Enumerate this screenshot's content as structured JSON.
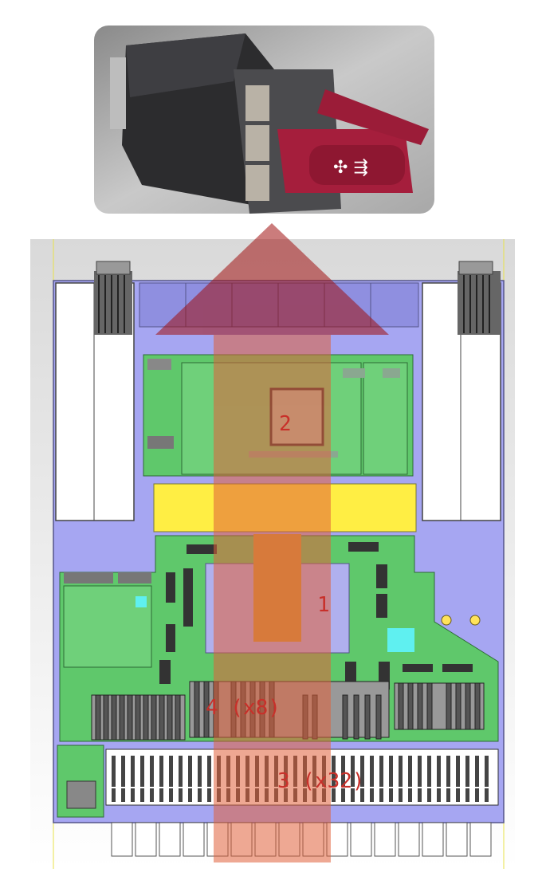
{
  "photo": {
    "icon": "fan-module-photo"
  },
  "labels": {
    "l1": "1",
    "l2": "2",
    "l3": "3 (x32)",
    "l4": "4 (x8)"
  },
  "colors": {
    "chassis": "#a6a6f2",
    "pcb": "#5fc86b",
    "heatsink": "#ffee44",
    "arrow": "#c23c2e",
    "handle": "#a51e3c"
  }
}
